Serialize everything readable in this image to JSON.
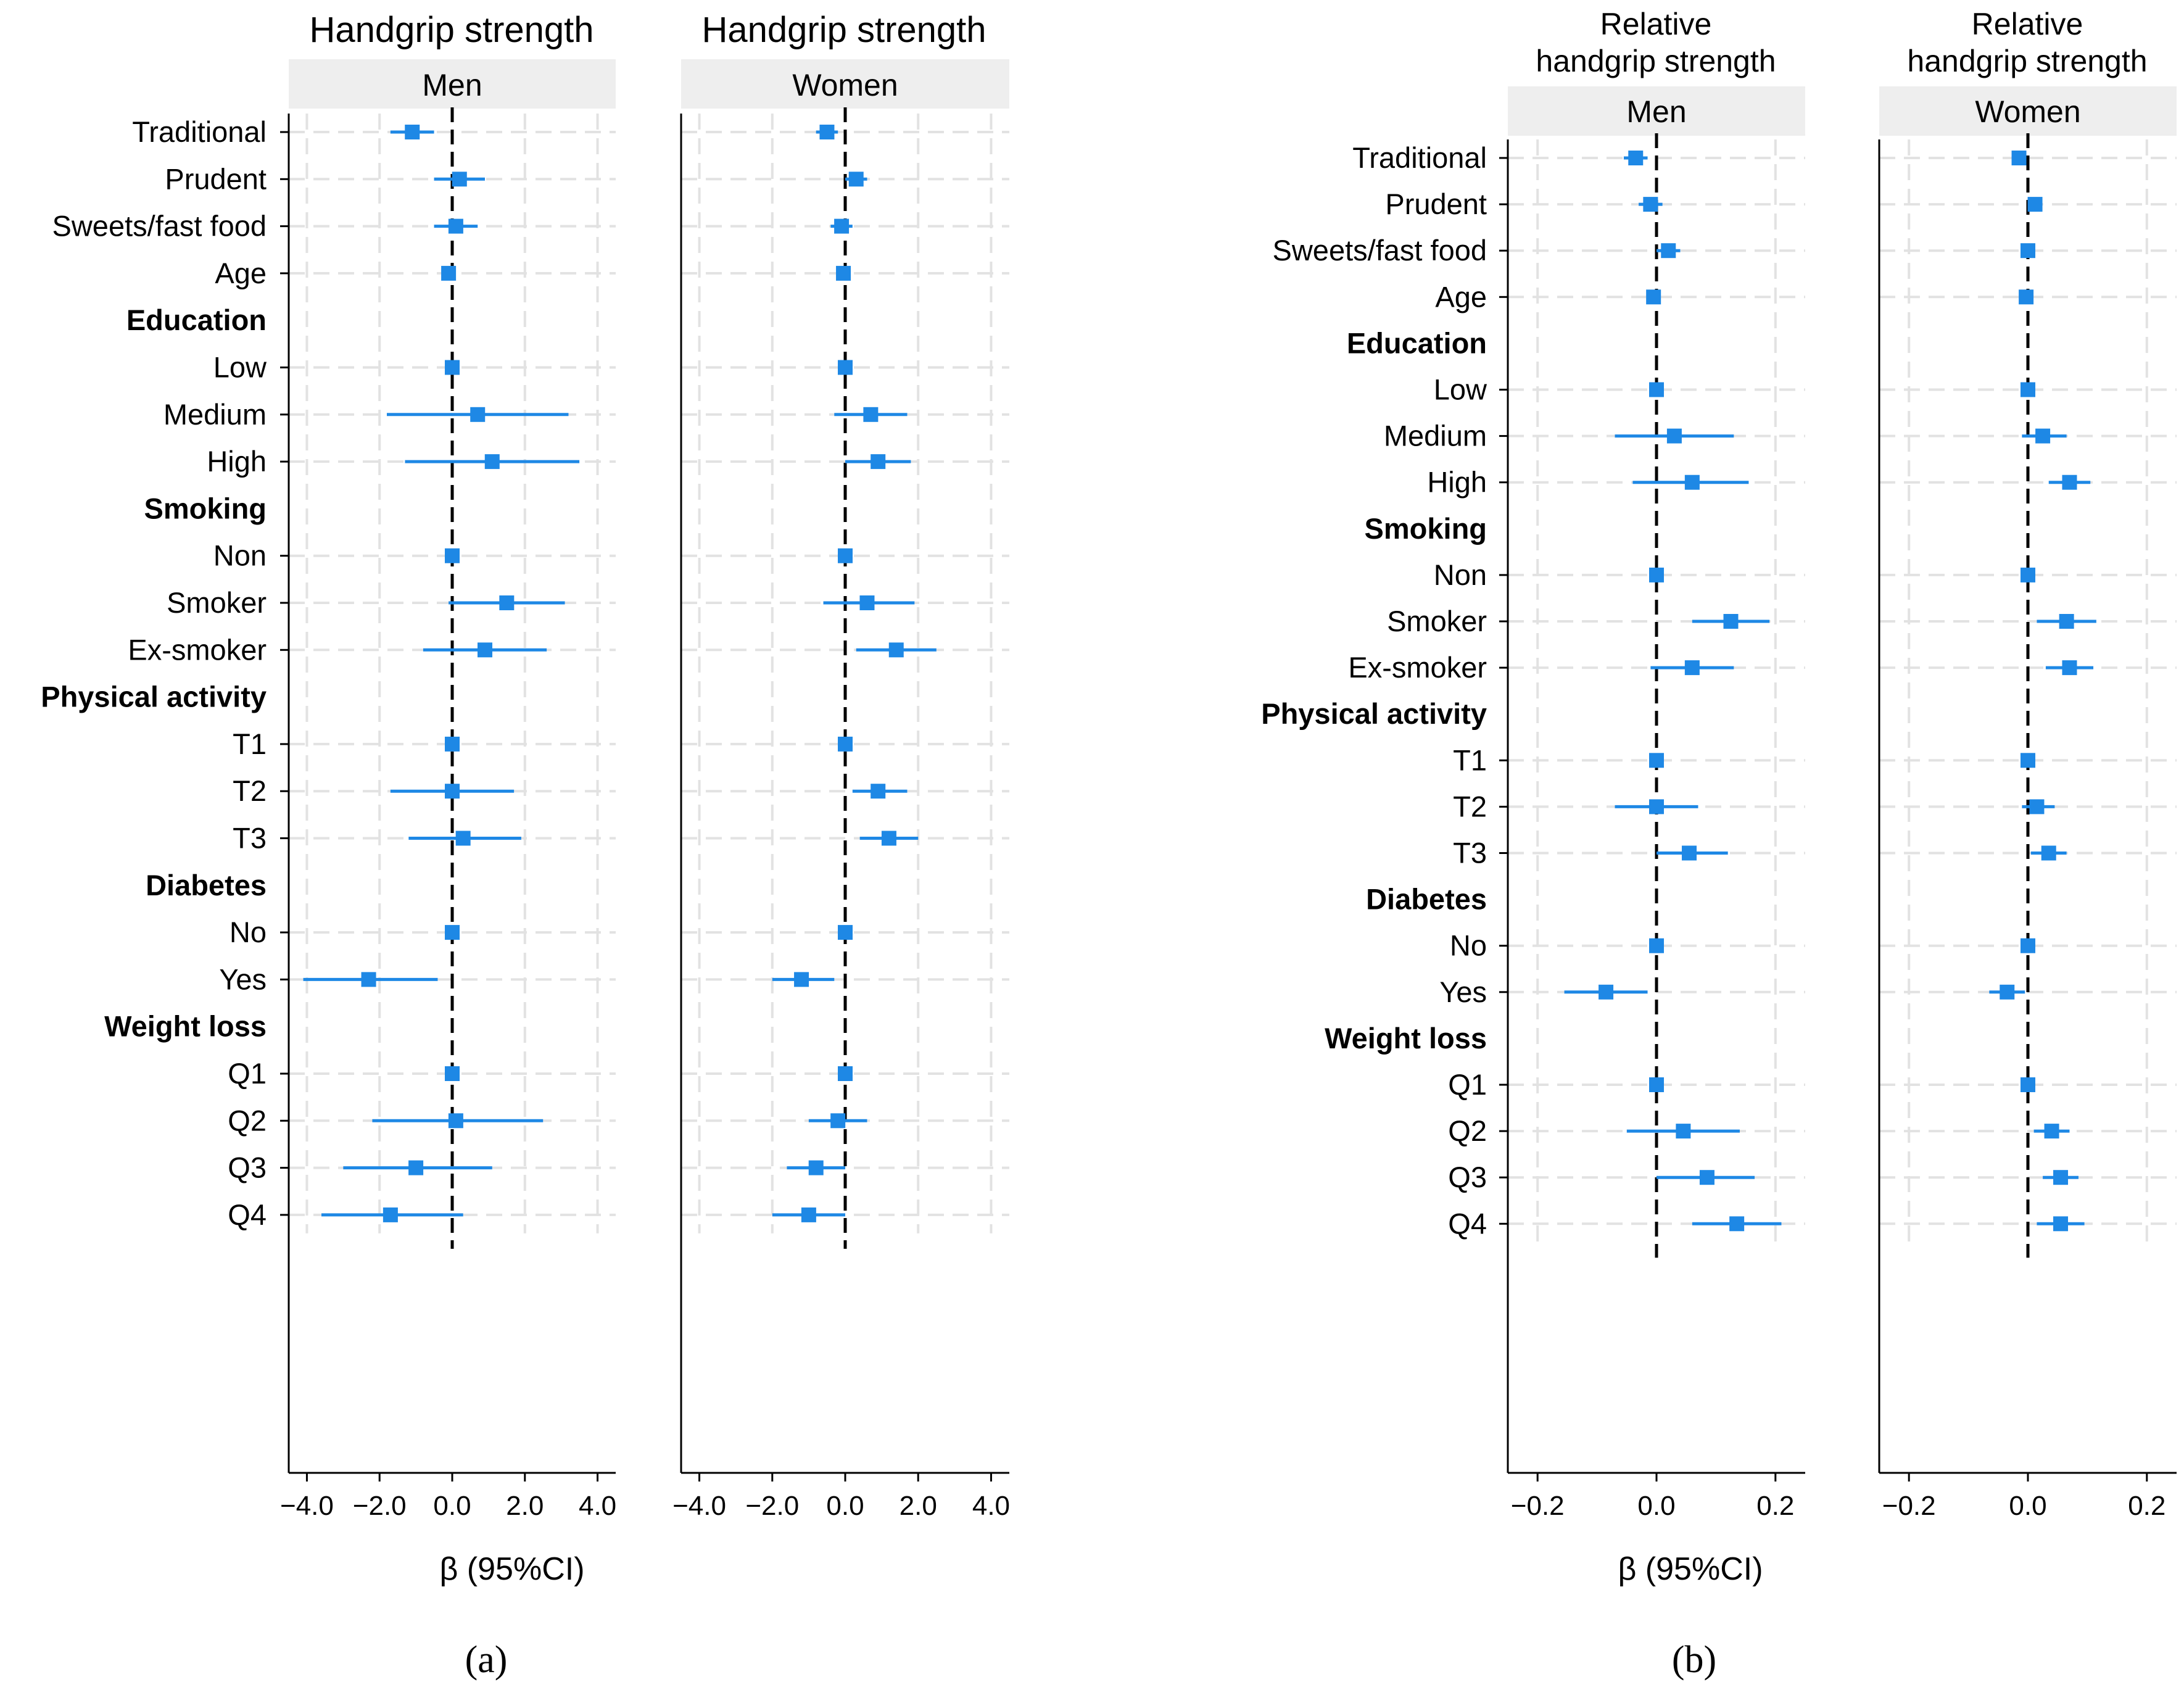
{
  "chart_data": [
    {
      "type": "forest",
      "panel": "(a)",
      "title": "Handgrip strength",
      "facet": "Men",
      "xlabel": "β (95%CI)",
      "xlim": [
        -4.5,
        4.5
      ],
      "xticks": [
        "-4.0",
        "-2.0",
        "0.0",
        "2.0",
        "4.0"
      ],
      "grid": true,
      "series": [
        {
          "label": "Traditional",
          "estimate": -1.1,
          "lower": -1.7,
          "upper": -0.5
        },
        {
          "label": "Prudent",
          "estimate": 0.2,
          "lower": -0.5,
          "upper": 0.9
        },
        {
          "label": "Sweets/fast food",
          "estimate": 0.1,
          "lower": -0.5,
          "upper": 0.7
        },
        {
          "label": "Age",
          "estimate": -0.1,
          "lower": -0.15,
          "upper": -0.05
        },
        {
          "label": "Low",
          "estimate": 0.0,
          "lower": 0.0,
          "upper": 0.0
        },
        {
          "label": "Medium",
          "estimate": 0.7,
          "lower": -1.8,
          "upper": 3.2
        },
        {
          "label": "High",
          "estimate": 1.1,
          "lower": -1.3,
          "upper": 3.5
        },
        {
          "label": "Non",
          "estimate": 0.0,
          "lower": 0.0,
          "upper": 0.0
        },
        {
          "label": "Smoker",
          "estimate": 1.5,
          "lower": -0.1,
          "upper": 3.1
        },
        {
          "label": "Ex-smoker",
          "estimate": 0.9,
          "lower": -0.8,
          "upper": 2.6
        },
        {
          "label": "T1",
          "estimate": 0.0,
          "lower": 0.0,
          "upper": 0.0
        },
        {
          "label": "T2",
          "estimate": 0.0,
          "lower": -1.7,
          "upper": 1.7
        },
        {
          "label": "T3",
          "estimate": 0.3,
          "lower": -1.2,
          "upper": 1.9
        },
        {
          "label": "No",
          "estimate": 0.0,
          "lower": 0.0,
          "upper": 0.0
        },
        {
          "label": "Yes",
          "estimate": -2.3,
          "lower": -4.1,
          "upper": -0.4
        },
        {
          "label": "Q1",
          "estimate": 0.0,
          "lower": 0.0,
          "upper": 0.0
        },
        {
          "label": "Q2",
          "estimate": 0.1,
          "lower": -2.2,
          "upper": 2.5
        },
        {
          "label": "Q3",
          "estimate": -1.0,
          "lower": -3.0,
          "upper": 1.1
        },
        {
          "label": "Q4",
          "estimate": -1.7,
          "lower": -3.6,
          "upper": 0.3
        }
      ]
    },
    {
      "type": "forest",
      "panel": "(a)",
      "title": "Handgrip strength",
      "facet": "Women",
      "xlabel": "",
      "xlim": [
        -4.5,
        4.5
      ],
      "xticks": [
        "-4.0",
        "-2.0",
        "0.0",
        "2.0",
        "4.0"
      ],
      "grid": true,
      "series": [
        {
          "label": "Traditional",
          "estimate": -0.5,
          "lower": -0.8,
          "upper": -0.2
        },
        {
          "label": "Prudent",
          "estimate": 0.3,
          "lower": 0.0,
          "upper": 0.6
        },
        {
          "label": "Sweets/fast food",
          "estimate": -0.1,
          "lower": -0.4,
          "upper": 0.2
        },
        {
          "label": "Age",
          "estimate": -0.05,
          "lower": -0.1,
          "upper": 0.0
        },
        {
          "label": "Low",
          "estimate": 0.0,
          "lower": 0.0,
          "upper": 0.0
        },
        {
          "label": "Medium",
          "estimate": 0.7,
          "lower": -0.3,
          "upper": 1.7
        },
        {
          "label": "High",
          "estimate": 0.9,
          "lower": 0.0,
          "upper": 1.8
        },
        {
          "label": "Non",
          "estimate": 0.0,
          "lower": 0.0,
          "upper": 0.0
        },
        {
          "label": "Smoker",
          "estimate": 0.6,
          "lower": -0.6,
          "upper": 1.9
        },
        {
          "label": "Ex-smoker",
          "estimate": 1.4,
          "lower": 0.3,
          "upper": 2.5
        },
        {
          "label": "T1",
          "estimate": 0.0,
          "lower": 0.0,
          "upper": 0.0
        },
        {
          "label": "T2",
          "estimate": 0.9,
          "lower": 0.2,
          "upper": 1.7
        },
        {
          "label": "T3",
          "estimate": 1.2,
          "lower": 0.4,
          "upper": 2.0
        },
        {
          "label": "No",
          "estimate": 0.0,
          "lower": 0.0,
          "upper": 0.0
        },
        {
          "label": "Yes",
          "estimate": -1.2,
          "lower": -2.0,
          "upper": -0.3
        },
        {
          "label": "Q1",
          "estimate": 0.0,
          "lower": 0.0,
          "upper": 0.0
        },
        {
          "label": "Q2",
          "estimate": -0.2,
          "lower": -1.0,
          "upper": 0.6
        },
        {
          "label": "Q3",
          "estimate": -0.8,
          "lower": -1.6,
          "upper": 0.0
        },
        {
          "label": "Q4",
          "estimate": -1.0,
          "lower": -2.0,
          "upper": 0.0
        }
      ]
    },
    {
      "type": "forest",
      "panel": "(b)",
      "title": "Relative handgrip strength",
      "facet": "Men",
      "xlabel": "β (95%CI)",
      "xlim": [
        -0.25,
        0.25
      ],
      "xticks": [
        "-0.2",
        "0.0",
        "0.2"
      ],
      "grid": true,
      "series": [
        {
          "label": "Traditional",
          "estimate": -0.035,
          "lower": -0.055,
          "upper": -0.015
        },
        {
          "label": "Prudent",
          "estimate": -0.01,
          "lower": -0.03,
          "upper": 0.01
        },
        {
          "label": "Sweets/fast food",
          "estimate": 0.02,
          "lower": 0.0,
          "upper": 0.04
        },
        {
          "label": "Age",
          "estimate": -0.005,
          "lower": -0.008,
          "upper": -0.002
        },
        {
          "label": "Low",
          "estimate": 0.0,
          "lower": 0.0,
          "upper": 0.0
        },
        {
          "label": "Medium",
          "estimate": 0.03,
          "lower": -0.07,
          "upper": 0.13
        },
        {
          "label": "High",
          "estimate": 0.06,
          "lower": -0.04,
          "upper": 0.155
        },
        {
          "label": "Non",
          "estimate": 0.0,
          "lower": 0.0,
          "upper": 0.0
        },
        {
          "label": "Smoker",
          "estimate": 0.125,
          "lower": 0.06,
          "upper": 0.19
        },
        {
          "label": "Ex-smoker",
          "estimate": 0.06,
          "lower": -0.01,
          "upper": 0.13
        },
        {
          "label": "T1",
          "estimate": 0.0,
          "lower": 0.0,
          "upper": 0.0
        },
        {
          "label": "T2",
          "estimate": 0.0,
          "lower": -0.07,
          "upper": 0.07
        },
        {
          "label": "T3",
          "estimate": 0.055,
          "lower": 0.0,
          "upper": 0.12
        },
        {
          "label": "No",
          "estimate": 0.0,
          "lower": 0.0,
          "upper": 0.0
        },
        {
          "label": "Yes",
          "estimate": -0.085,
          "lower": -0.155,
          "upper": -0.015
        },
        {
          "label": "Q1",
          "estimate": 0.0,
          "lower": 0.0,
          "upper": 0.0
        },
        {
          "label": "Q2",
          "estimate": 0.045,
          "lower": -0.05,
          "upper": 0.14
        },
        {
          "label": "Q3",
          "estimate": 0.085,
          "lower": 0.0,
          "upper": 0.165
        },
        {
          "label": "Q4",
          "estimate": 0.135,
          "lower": 0.06,
          "upper": 0.21
        }
      ]
    },
    {
      "type": "forest",
      "panel": "(b)",
      "title": "Relative handgrip strength",
      "facet": "Women",
      "xlabel": "",
      "xlim": [
        -0.25,
        0.25
      ],
      "xticks": [
        "-0.2",
        "0.0",
        "0.2"
      ],
      "grid": true,
      "series": [
        {
          "label": "Traditional",
          "estimate": -0.015,
          "lower": -0.022,
          "upper": -0.008
        },
        {
          "label": "Prudent",
          "estimate": 0.012,
          "lower": 0.005,
          "upper": 0.019
        },
        {
          "label": "Sweets/fast food",
          "estimate": 0.0,
          "lower": -0.008,
          "upper": 0.008
        },
        {
          "label": "Age",
          "estimate": -0.003,
          "lower": -0.005,
          "upper": -0.001
        },
        {
          "label": "Low",
          "estimate": 0.0,
          "lower": 0.0,
          "upper": 0.0
        },
        {
          "label": "Medium",
          "estimate": 0.025,
          "lower": -0.01,
          "upper": 0.065
        },
        {
          "label": "High",
          "estimate": 0.07,
          "lower": 0.035,
          "upper": 0.105
        },
        {
          "label": "Non",
          "estimate": 0.0,
          "lower": 0.0,
          "upper": 0.0
        },
        {
          "label": "Smoker",
          "estimate": 0.065,
          "lower": 0.015,
          "upper": 0.115
        },
        {
          "label": "Ex-smoker",
          "estimate": 0.07,
          "lower": 0.03,
          "upper": 0.11
        },
        {
          "label": "T1",
          "estimate": 0.0,
          "lower": 0.0,
          "upper": 0.0
        },
        {
          "label": "T2",
          "estimate": 0.015,
          "lower": -0.01,
          "upper": 0.045
        },
        {
          "label": "T3",
          "estimate": 0.035,
          "lower": 0.005,
          "upper": 0.065
        },
        {
          "label": "No",
          "estimate": 0.0,
          "lower": 0.0,
          "upper": 0.0
        },
        {
          "label": "Yes",
          "estimate": -0.035,
          "lower": -0.065,
          "upper": -0.005
        },
        {
          "label": "Q1",
          "estimate": 0.0,
          "lower": 0.0,
          "upper": 0.0
        },
        {
          "label": "Q2",
          "estimate": 0.04,
          "lower": 0.01,
          "upper": 0.07
        },
        {
          "label": "Q3",
          "estimate": 0.055,
          "lower": 0.025,
          "upper": 0.085
        },
        {
          "label": "Q4",
          "estimate": 0.055,
          "lower": 0.015,
          "upper": 0.095
        }
      ]
    }
  ],
  "row_layout": [
    {
      "label": "Traditional",
      "header": false
    },
    {
      "label": "Prudent",
      "header": false
    },
    {
      "label": "Sweets/fast food",
      "header": false
    },
    {
      "label": "Age",
      "header": false
    },
    {
      "label": "Education",
      "header": true
    },
    {
      "label": "Low",
      "header": false
    },
    {
      "label": "Medium",
      "header": false
    },
    {
      "label": "High",
      "header": false
    },
    {
      "label": "Smoking",
      "header": true
    },
    {
      "label": "Non",
      "header": false
    },
    {
      "label": "Smoker",
      "header": false
    },
    {
      "label": "Ex-smoker",
      "header": false
    },
    {
      "label": "Physical activity",
      "header": true
    },
    {
      "label": "T1",
      "header": false
    },
    {
      "label": "T2",
      "header": false
    },
    {
      "label": "T3",
      "header": false
    },
    {
      "label": "Diabetes",
      "header": true
    },
    {
      "label": "No",
      "header": false
    },
    {
      "label": "Yes",
      "header": false
    },
    {
      "label": "Weight loss",
      "header": true
    },
    {
      "label": "Q1",
      "header": false
    },
    {
      "label": "Q2",
      "header": false
    },
    {
      "label": "Q3",
      "header": false
    },
    {
      "label": "Q4",
      "header": false
    }
  ],
  "figure": {
    "title_a_men": "Handgrip strength",
    "title_a_women": "Handgrip strength",
    "title_b_line1": "Relative",
    "title_b_line2": "handgrip strength",
    "strip_men": "Men",
    "strip_women": "Women",
    "xlabel": "β (95%CI)",
    "sublabel_a": "(a)",
    "sublabel_b": "(b)"
  },
  "colors": {
    "marker": "#1E88E5",
    "ci_line": "#1E88E5",
    "reference_line": "#000000",
    "grid": "#E2E2E2",
    "strip_bg": "#EEEEEE",
    "axis": "#000000"
  }
}
